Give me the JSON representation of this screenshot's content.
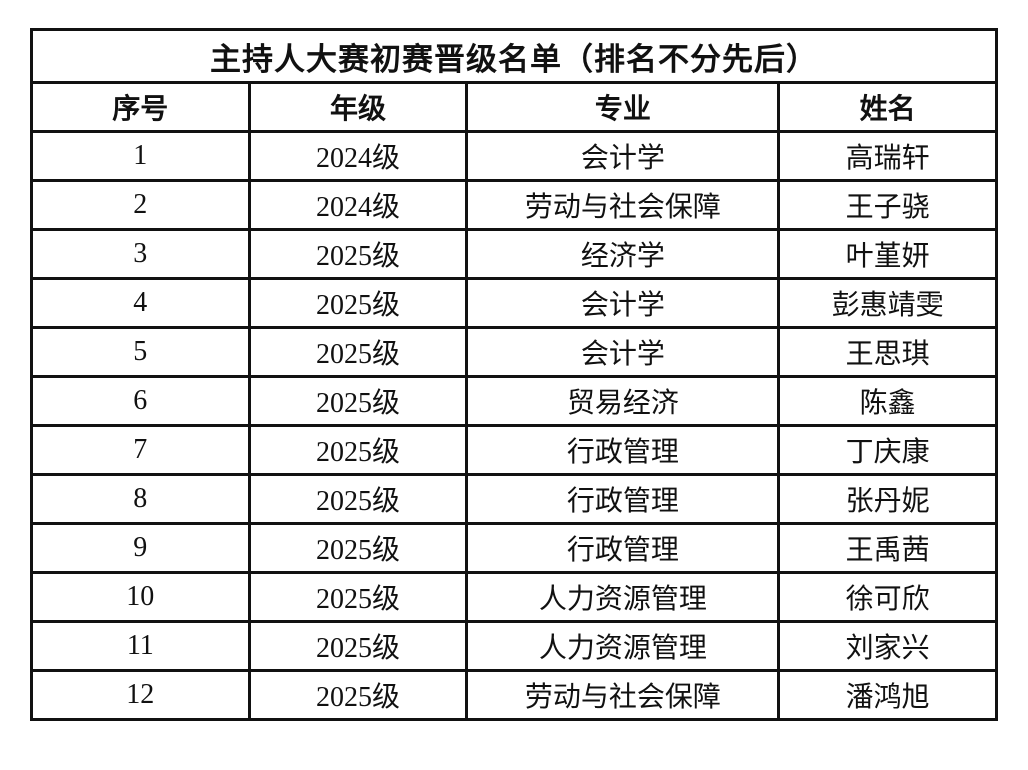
{
  "title": "主持人大赛初赛晋级名单（排名不分先后）",
  "headers": [
    "序号",
    "年级",
    "专业",
    "姓名"
  ],
  "rows": [
    [
      "1",
      "2024级",
      "会计学",
      "高瑞轩"
    ],
    [
      "2",
      "2024级",
      "劳动与社会保障",
      "王子骁"
    ],
    [
      "3",
      "2025级",
      "经济学",
      "叶堇妍"
    ],
    [
      "4",
      "2025级",
      "会计学",
      "彭惠靖雯"
    ],
    [
      "5",
      "2025级",
      "会计学",
      "王思琪"
    ],
    [
      "6",
      "2025级",
      "贸易经济",
      "陈鑫"
    ],
    [
      "7",
      "2025级",
      "行政管理",
      "丁庆康"
    ],
    [
      "8",
      "2025级",
      "行政管理",
      "张丹妮"
    ],
    [
      "9",
      "2025级",
      "行政管理",
      "王禹茜"
    ],
    [
      "10",
      "2025级",
      "人力资源管理",
      "徐可欣"
    ],
    [
      "11",
      "2025级",
      "人力资源管理",
      "刘家兴"
    ],
    [
      "12",
      "2025级",
      "劳动与社会保障",
      "潘鸿旭"
    ]
  ]
}
